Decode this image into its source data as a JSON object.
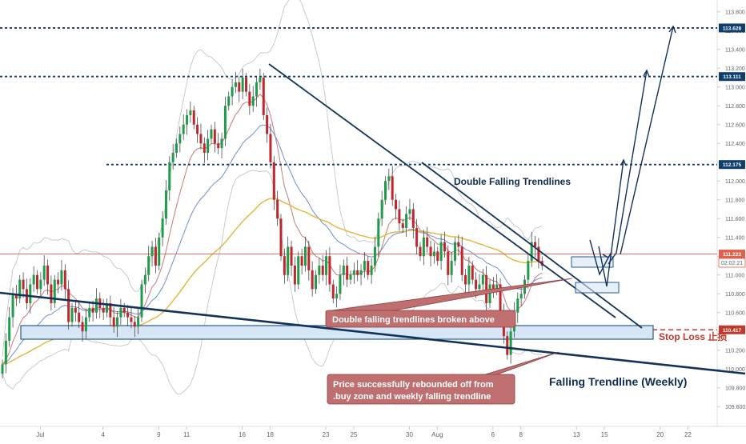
{
  "chart_data": {
    "type": "candlestick",
    "instrument_hint": "",
    "ylim": [
      109.5,
      113.9
    ],
    "y_ticks": [
      "113.800",
      "113.600",
      "113.400",
      "113.200",
      "113.000",
      "112.800",
      "112.600",
      "112.400",
      "112.200",
      "112.000",
      "111.800",
      "111.600",
      "111.400",
      "111.200",
      "111.000",
      "110.800",
      "110.600",
      "110.400",
      "110.200",
      "110.000",
      "109.800",
      "109.600"
    ],
    "x_ticks": [
      {
        "label": "Jul",
        "bar": 4
      },
      {
        "label": "4",
        "bar": 22
      },
      {
        "label": "9",
        "bar": 38
      },
      {
        "label": "11",
        "bar": 46
      },
      {
        "label": "16",
        "bar": 62
      },
      {
        "label": "18",
        "bar": 70
      },
      {
        "label": "23",
        "bar": 86
      },
      {
        "label": "25",
        "bar": 94
      },
      {
        "label": "30",
        "bar": 110
      },
      {
        "label": "Aug",
        "bar": 118
      },
      {
        "label": "6",
        "bar": 134
      },
      {
        "label": "8",
        "bar": 142
      },
      {
        "label": "13",
        "bar": 158
      },
      {
        "label": "15",
        "bar": 166
      },
      {
        "label": "20",
        "bar": 182
      },
      {
        "label": "22",
        "bar": 190
      }
    ],
    "candle_closes": [
      110.05,
      110.3,
      110.55,
      110.8,
      110.75,
      110.95,
      110.85,
      110.7,
      110.9,
      111.0,
      110.85,
      110.95,
      111.1,
      110.9,
      110.7,
      110.95,
      110.9,
      111.05,
      110.85,
      110.5,
      110.65,
      110.6,
      110.5,
      110.4,
      110.55,
      110.65,
      110.6,
      110.75,
      110.65,
      110.6,
      110.7,
      110.55,
      110.45,
      110.55,
      110.65,
      110.6,
      110.55,
      110.5,
      110.45,
      110.55,
      110.9,
      111.0,
      111.2,
      111.3,
      111.1,
      111.4,
      111.6,
      111.9,
      112.2,
      112.3,
      112.4,
      112.5,
      112.6,
      112.7,
      112.75,
      112.6,
      112.5,
      112.4,
      112.3,
      112.45,
      112.55,
      112.4,
      112.35,
      112.45,
      112.8,
      112.9,
      113.0,
      113.05,
      112.95,
      113.1,
      112.95,
      112.8,
      112.9,
      113.05,
      113.1,
      112.7,
      112.5,
      112.2,
      111.8,
      111.6,
      111.2,
      111.0,
      111.3,
      111.1,
      110.9,
      111.2,
      111.1,
      111.3,
      111.05,
      110.85,
      111.0,
      111.1,
      111.0,
      111.2,
      110.9,
      110.75,
      110.8,
      111.0,
      111.1,
      110.95,
      111.0,
      111.05,
      111.0,
      111.05,
      111.15,
      111.0,
      111.1,
      111.3,
      111.6,
      111.8,
      112.0,
      112.05,
      111.8,
      111.7,
      111.55,
      111.5,
      111.65,
      111.7,
      111.5,
      111.3,
      111.2,
      111.4,
      111.3,
      111.2,
      111.25,
      111.15,
      111.35,
      111.25,
      111.0,
      111.15,
      111.35,
      111.3,
      111.0,
      110.9,
      111.1,
      110.95,
      110.85,
      110.9,
      111.0,
      110.7,
      110.9,
      110.85,
      110.9,
      110.6,
      110.35,
      110.15,
      110.4,
      110.6,
      110.75,
      110.8,
      110.95,
      111.15,
      111.35,
      111.3,
      111.15,
      111.1
    ],
    "horizontal_levels": [
      {
        "value": 113.628,
        "label": "113.628",
        "color": "#0f3d6e"
      },
      {
        "value": 113.111,
        "label": "113.111",
        "color": "#0f3d6e"
      },
      {
        "value": 112.175,
        "label": "112.175",
        "color": "#0f3d6e"
      },
      {
        "value": 111.223,
        "label": "111.223",
        "color": "#e0604f"
      },
      {
        "value": 110.417,
        "label": "110.417",
        "color": "#c0392b"
      }
    ],
    "current_price": "111.223",
    "countdown": "02:02:21",
    "annotations": {
      "double_trend_title": "Double Falling Trendlines",
      "broken_callout": "Double falling trendlines broken above",
      "rebound_callout_line1": "Price successfully rebounded off from",
      "rebound_callout_line2": ".buy zone and weekly falling trendline",
      "weekly_trend_title": "Falling Trendline (Weekly)",
      "stop_loss": "Stop Loss 止损"
    },
    "colors": {
      "bull": "#1e9c4a",
      "bear": "#c0262d",
      "trendline": "#12325a",
      "zone_fill": "#d7e6f5",
      "zone_stroke": "#2a5a8a",
      "bb": "#b9bec7",
      "ema_fast": "#c77878",
      "ema_mid": "#6d8fd1",
      "ema_slow": "#e2b53b",
      "callout_bg": "#bf6f6f"
    }
  }
}
